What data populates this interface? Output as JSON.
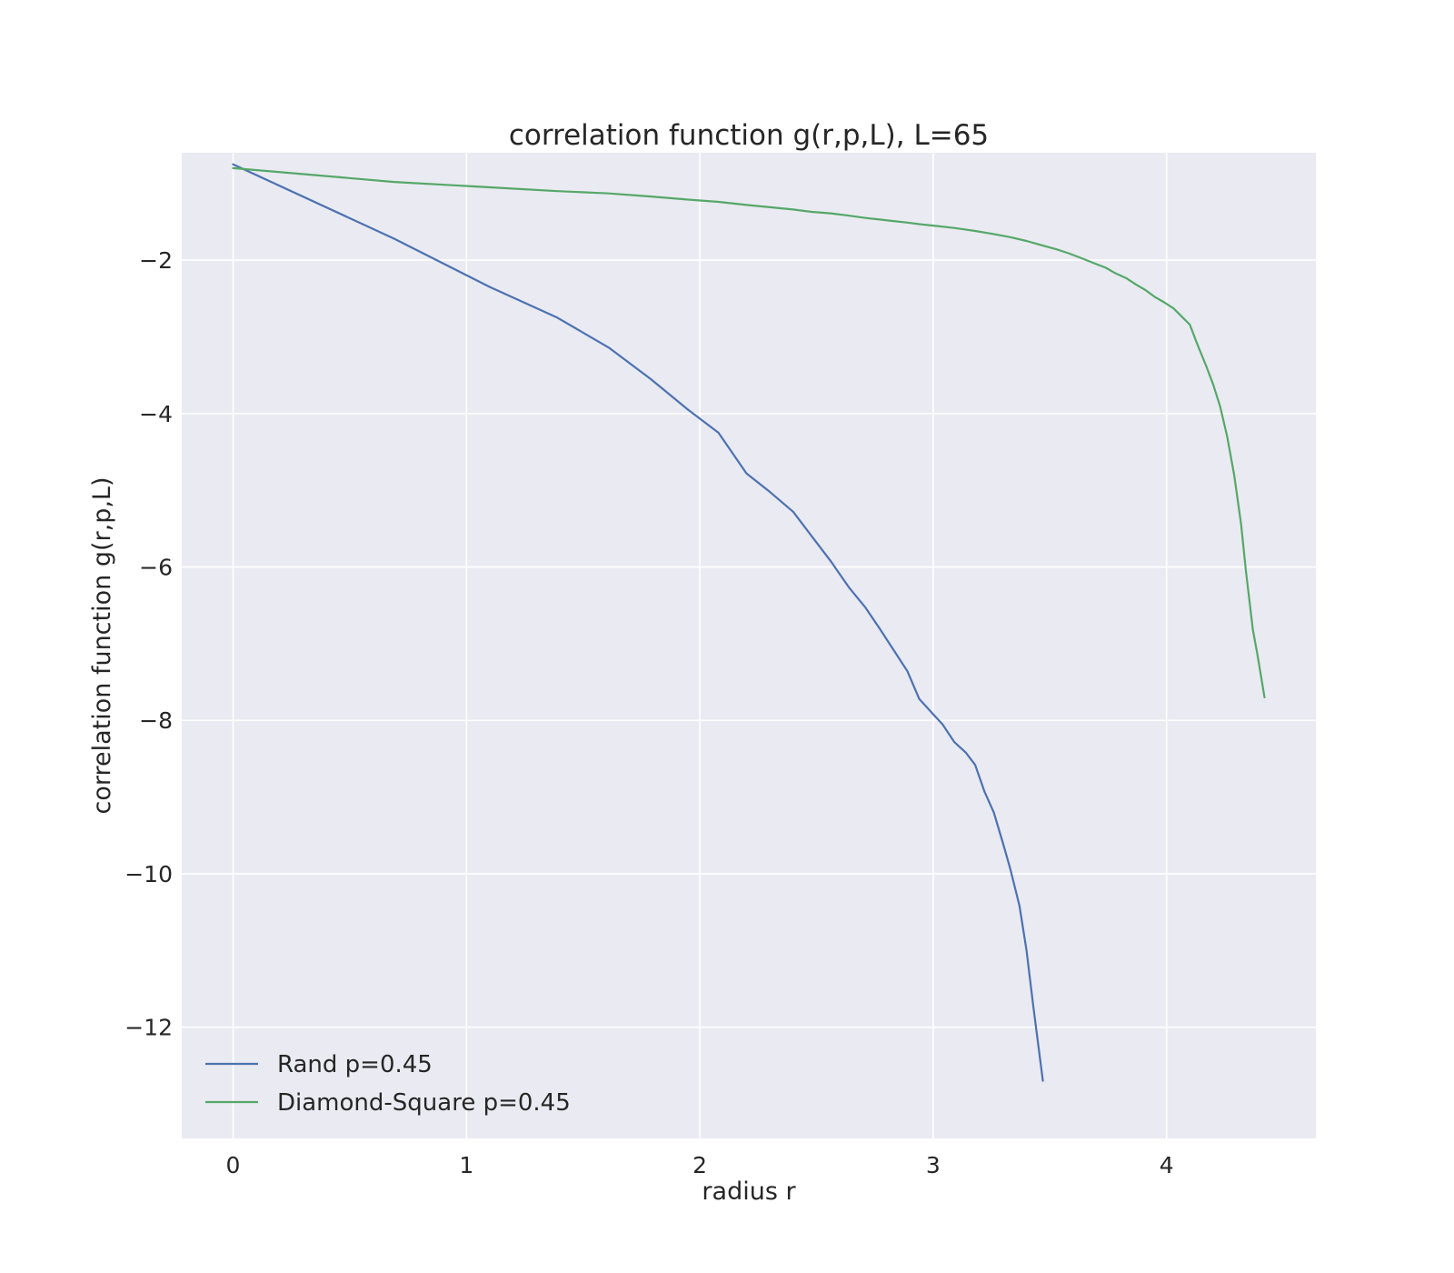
{
  "chart_data": {
    "type": "line",
    "title": "correlation function g(r,p,L), L=65",
    "xlabel": "radius r",
    "ylabel": "correlation function g(r,p,L)",
    "xlim": [
      -0.22,
      4.64
    ],
    "ylim": [
      -13.45,
      -0.6
    ],
    "xticks": [
      0,
      1,
      2,
      3,
      4
    ],
    "yticks": [
      -2,
      -4,
      -6,
      -8,
      -10,
      -12
    ],
    "xtick_labels": [
      "0",
      "1",
      "2",
      "3",
      "4"
    ],
    "ytick_labels": [
      "−2",
      "−4",
      "−6",
      "−8",
      "−10",
      "−12"
    ],
    "grid": true,
    "background": "#eaeaf2",
    "legend_position": "lower-left",
    "series": [
      {
        "name": "Rand p=0.45",
        "color": "#4c72b0",
        "x": [
          0,
          0.69,
          1.1,
          1.39,
          1.61,
          1.79,
          1.95,
          2.08,
          2.2,
          2.3,
          2.4,
          2.48,
          2.56,
          2.64,
          2.71,
          2.77,
          2.83,
          2.89,
          2.94,
          3.0,
          3.04,
          3.09,
          3.14,
          3.18,
          3.22,
          3.26,
          3.3,
          3.33,
          3.37,
          3.4,
          3.43,
          3.47
        ],
        "y": [
          -0.75,
          -1.72,
          -2.35,
          -2.75,
          -3.14,
          -3.55,
          -3.95,
          -4.25,
          -4.78,
          -5.02,
          -5.28,
          -5.6,
          -5.92,
          -6.27,
          -6.53,
          -6.8,
          -7.08,
          -7.36,
          -7.72,
          -7.92,
          -8.05,
          -8.28,
          -8.42,
          -8.58,
          -8.93,
          -9.2,
          -9.61,
          -9.93,
          -10.42,
          -11.0,
          -11.75,
          -12.7
        ]
      },
      {
        "name": "Diamond-Square p=0.45",
        "color": "#55a868",
        "x": [
          0,
          0.69,
          1.1,
          1.39,
          1.61,
          1.79,
          1.95,
          2.08,
          2.2,
          2.3,
          2.4,
          2.48,
          2.56,
          2.64,
          2.71,
          2.77,
          2.83,
          2.89,
          2.94,
          3.0,
          3.09,
          3.18,
          3.26,
          3.33,
          3.4,
          3.47,
          3.53,
          3.58,
          3.64,
          3.69,
          3.74,
          3.78,
          3.83,
          3.87,
          3.91,
          3.95,
          3.99,
          4.03,
          4.06,
          4.1,
          4.13,
          4.17,
          4.2,
          4.23,
          4.26,
          4.29,
          4.32,
          4.34,
          4.37,
          4.39,
          4.42
        ],
        "y": [
          -0.8,
          -0.98,
          -1.05,
          -1.1,
          -1.13,
          -1.17,
          -1.21,
          -1.24,
          -1.28,
          -1.31,
          -1.34,
          -1.37,
          -1.39,
          -1.42,
          -1.45,
          -1.47,
          -1.49,
          -1.51,
          -1.53,
          -1.55,
          -1.58,
          -1.62,
          -1.66,
          -1.7,
          -1.75,
          -1.81,
          -1.86,
          -1.91,
          -1.98,
          -2.04,
          -2.1,
          -2.17,
          -2.24,
          -2.32,
          -2.39,
          -2.48,
          -2.55,
          -2.63,
          -2.72,
          -2.84,
          -3.08,
          -3.38,
          -3.62,
          -3.91,
          -4.3,
          -4.8,
          -5.45,
          -6.05,
          -6.82,
          -7.15,
          -7.7
        ]
      }
    ]
  }
}
